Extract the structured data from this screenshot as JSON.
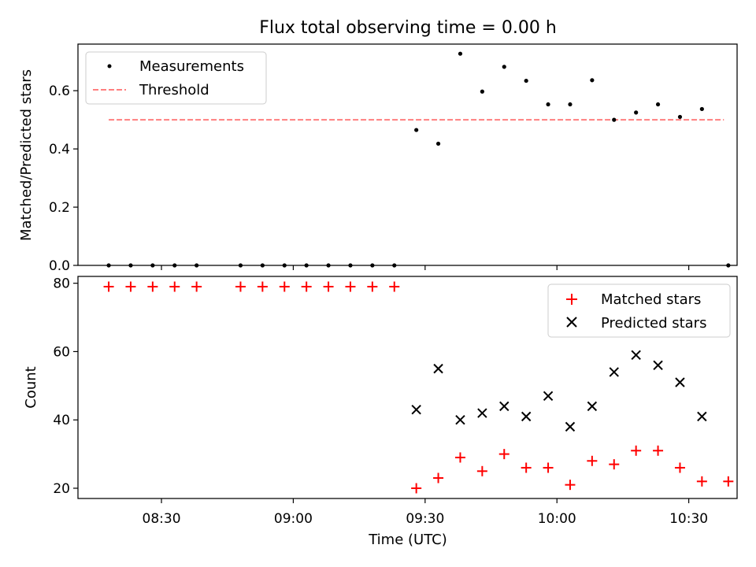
{
  "title": "Flux total observing time = 0.00 h",
  "chart_data": [
    {
      "type": "scatter",
      "ylabel": "Matched/Predicted stars",
      "xlim": [
        "08:11",
        "10:41"
      ],
      "ylim": [
        0,
        0.76
      ],
      "yticks": [
        0.0,
        0.2,
        0.4,
        0.6
      ],
      "ytick_labels": [
        "0.0",
        "0.2",
        "0.4",
        "0.6"
      ],
      "legend_position": "upper left",
      "series": [
        {
          "name": "Measurements",
          "marker": "dot",
          "color": "#000000",
          "x": [
            "08:18",
            "08:23",
            "08:28",
            "08:33",
            "08:38",
            "08:48",
            "08:53",
            "08:58",
            "09:03",
            "09:08",
            "09:13",
            "09:18",
            "09:23",
            "09:28",
            "09:33",
            "09:38",
            "09:43",
            "09:48",
            "09:53",
            "09:58",
            "10:03",
            "10:08",
            "10:13",
            "10:18",
            "10:23",
            "10:28",
            "10:33",
            "10:39"
          ],
          "y": [
            0,
            0,
            0,
            0,
            0,
            0,
            0,
            0,
            0,
            0,
            0,
            0,
            0,
            0.465,
            0.418,
            0.727,
            0.597,
            0.682,
            0.634,
            0.553,
            0.553,
            0.636,
            0.5,
            0.525,
            0.553,
            0.51,
            0.537,
            0
          ]
        },
        {
          "name": "Threshold",
          "style": "dashed",
          "color": "#ff7f7f",
          "x": [
            "08:18",
            "10:38"
          ],
          "y": [
            0.5,
            0.5
          ]
        }
      ]
    },
    {
      "type": "scatter",
      "ylabel": "Count",
      "xlabel": "Time (UTC)",
      "xlim": [
        "08:11",
        "10:41"
      ],
      "ylim": [
        17,
        82
      ],
      "yticks": [
        20,
        40,
        60,
        80
      ],
      "xticks": [
        "08:30",
        "09:00",
        "09:30",
        "10:00",
        "10:30"
      ],
      "legend_position": "upper right",
      "series": [
        {
          "name": "Matched stars",
          "marker": "plus",
          "color": "#ff0000",
          "x": [
            "08:18",
            "08:23",
            "08:28",
            "08:33",
            "08:38",
            "08:48",
            "08:53",
            "08:58",
            "09:03",
            "09:08",
            "09:13",
            "09:18",
            "09:23",
            "09:28",
            "09:33",
            "09:38",
            "09:43",
            "09:48",
            "09:53",
            "09:58",
            "10:03",
            "10:08",
            "10:13",
            "10:18",
            "10:23",
            "10:28",
            "10:33",
            "10:39"
          ],
          "y": [
            79,
            79,
            79,
            79,
            79,
            79,
            79,
            79,
            79,
            79,
            79,
            79,
            79,
            20,
            23,
            29,
            25,
            30,
            26,
            26,
            21,
            28,
            27,
            31,
            31,
            26,
            22,
            22
          ]
        },
        {
          "name": "Predicted stars",
          "marker": "x",
          "color": "#000000",
          "x": [
            "09:28",
            "09:33",
            "09:38",
            "09:43",
            "09:48",
            "09:53",
            "09:58",
            "10:03",
            "10:08",
            "10:13",
            "10:18",
            "10:23",
            "10:28",
            "10:33"
          ],
          "y": [
            43,
            55,
            40,
            42,
            44,
            41,
            47,
            38,
            44,
            54,
            59,
            56,
            51,
            41
          ]
        }
      ]
    }
  ]
}
